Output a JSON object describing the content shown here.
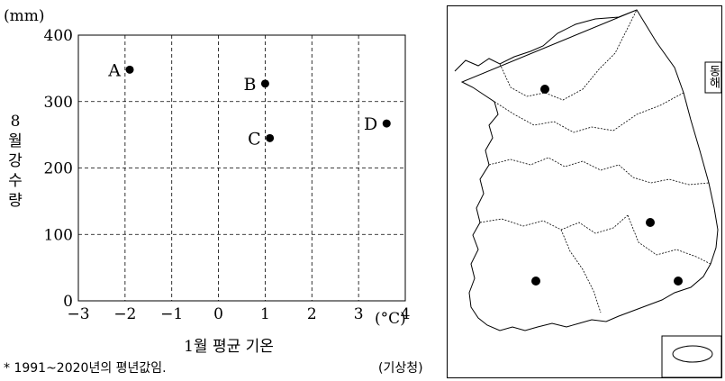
{
  "chart_data": {
    "type": "scatter",
    "title": "",
    "xlabel": "1월 평균 기온",
    "ylabel": "8월 강수량",
    "x_unit": "(°C)",
    "y_unit": "(mm)",
    "xlim": [
      -3,
      4
    ],
    "ylim": [
      0,
      400
    ],
    "xticks": [
      "−3",
      "−2",
      "−1",
      "0",
      "1",
      "2",
      "3",
      "4"
    ],
    "yticks": [
      "0",
      "100",
      "200",
      "300",
      "400"
    ],
    "grid": true,
    "points": [
      {
        "label": "A",
        "x": -1.9,
        "y": 348
      },
      {
        "label": "B",
        "x": 1.0,
        "y": 327
      },
      {
        "label": "C",
        "x": 1.1,
        "y": 245
      },
      {
        "label": "D",
        "x": 3.6,
        "y": 267
      }
    ]
  },
  "footnote": "* 1991~2020년의 평년값임.",
  "source": "(기상청)",
  "map": {
    "sea_label": "동해",
    "marked_cities": 4
  }
}
